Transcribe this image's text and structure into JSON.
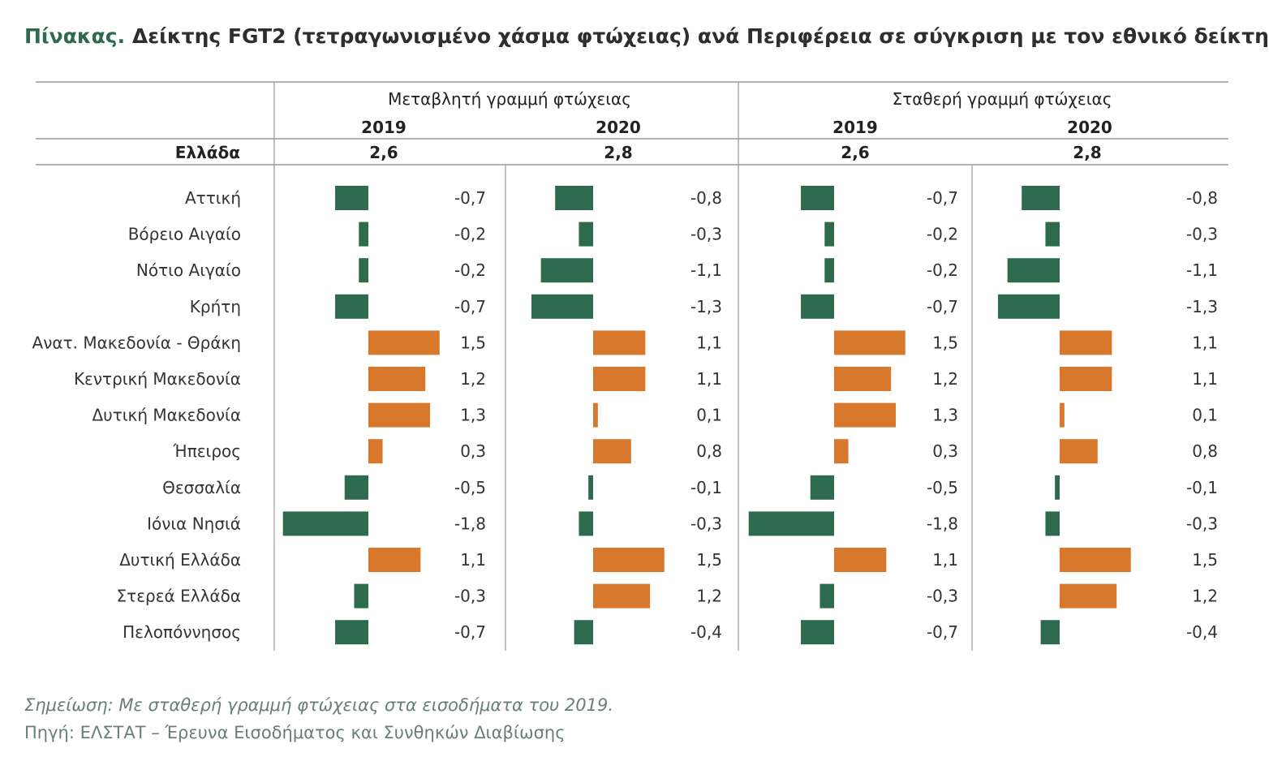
{
  "title_lead": "Πίνακας.",
  "title_text": "Δείκτης FGT2 (τετραγωνισμένο χάσμα φτώχειας) ανά Περιφέρεια σε σύγκριση με τον εθνικό δείκτη",
  "colors": {
    "negative": "#2e6b4e",
    "positive": "#d8782c",
    "title_lead": "#2e6b4e",
    "footer": "#6a7f74"
  },
  "chart_data": {
    "type": "bar",
    "orientation": "horizontal",
    "groups": [
      {
        "label": "Μεταβλητή γραμμή φτώχειας",
        "years": [
          "2019",
          "2020"
        ],
        "national": [
          "2,6",
          "2,8"
        ]
      },
      {
        "label": "Σταθερή γραμμή φτώχειας",
        "years": [
          "2019",
          "2020"
        ],
        "national": [
          "2,6",
          "2,8"
        ]
      }
    ],
    "national_label": "Ελλάδα",
    "categories": [
      "Αττική",
      "Βόρειο Αιγαίο",
      "Νότιο Αιγαίο",
      "Κρήτη",
      "Ανατ. Μακεδονία - Θράκη",
      "Κεντρική Μακεδονία",
      "Δυτική Μακεδονία",
      "Ήπειρος",
      "Θεσσαλία",
      "Ιόνια Νησιά",
      "Δυτική Ελλάδα",
      "Στερεά Ελλάδα",
      "Πελοπόννησος"
    ],
    "series": [
      {
        "group": "Μεταβλητή γραμμή φτώχειας",
        "year": "2019",
        "values": [
          -0.7,
          -0.2,
          -0.2,
          -0.7,
          1.5,
          1.2,
          1.3,
          0.3,
          -0.5,
          -1.8,
          1.1,
          -0.3,
          -0.7
        ],
        "labels": [
          "-0,7",
          "-0,2",
          "-0,2",
          "-0,7",
          "1,5",
          "1,2",
          "1,3",
          "0,3",
          "-0,5",
          "-1,8",
          "1,1",
          "-0,3",
          "-0,7"
        ]
      },
      {
        "group": "Μεταβλητή γραμμή φτώχειας",
        "year": "2020",
        "values": [
          -0.8,
          -0.3,
          -1.1,
          -1.3,
          1.1,
          1.1,
          0.1,
          0.8,
          -0.1,
          -0.3,
          1.5,
          1.2,
          -0.4
        ],
        "labels": [
          "-0,8",
          "-0,3",
          "-1,1",
          "-1,3",
          "1,1",
          "1,1",
          "0,1",
          "0,8",
          "-0,1",
          "-0,3",
          "1,5",
          "1,2",
          "-0,4"
        ]
      },
      {
        "group": "Σταθερή γραμμή φτώχειας",
        "year": "2019",
        "values": [
          -0.7,
          -0.2,
          -0.2,
          -0.7,
          1.5,
          1.2,
          1.3,
          0.3,
          -0.5,
          -1.8,
          1.1,
          -0.3,
          -0.7
        ],
        "labels": [
          "-0,7",
          "-0,2",
          "-0,2",
          "-0,7",
          "1,5",
          "1,2",
          "1,3",
          "0,3",
          "-0,5",
          "-1,8",
          "1,1",
          "-0,3",
          "-0,7"
        ]
      },
      {
        "group": "Σταθερή γραμμή φτώχειας",
        "year": "2020",
        "values": [
          -0.8,
          -0.3,
          -1.1,
          -1.3,
          1.1,
          1.1,
          0.1,
          0.8,
          -0.1,
          -0.3,
          1.5,
          1.2,
          -0.4
        ],
        "labels": [
          "-0,8",
          "-0,3",
          "-1,1",
          "-1,3",
          "1,1",
          "1,1",
          "0,1",
          "0,8",
          "-0,1",
          "-0,3",
          "1,5",
          "1,2",
          "-0,4"
        ]
      }
    ]
  },
  "footer": {
    "note_label": "Σημείωση:",
    "note_text": "Με σταθερή γραμμή φτώχειας στα εισοδήματα του 2019.",
    "source_label": "Πηγή:",
    "source_text": "ΕΛΣΤΑΤ – Έρευνα Εισοδήματος και Συνθηκών Διαβίωσης"
  }
}
